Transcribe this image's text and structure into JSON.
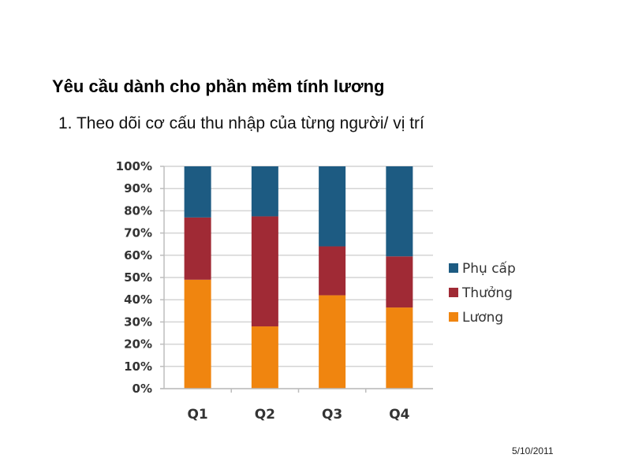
{
  "slide": {
    "title": "Yêu cầu dành cho phần mềm tính lương",
    "subtitle": "1. Theo dõi cơ cấu thu nhập của từng người/ vị trí",
    "date": "5/10/2011"
  },
  "chart_data": {
    "type": "bar",
    "stacked": true,
    "percent_stacked": true,
    "title": "",
    "xlabel": "",
    "ylabel": "",
    "ylim": [
      0,
      100
    ],
    "grid": true,
    "legend_position": "right",
    "yticks": [
      "0%",
      "10%",
      "20%",
      "30%",
      "40%",
      "50%",
      "60%",
      "70%",
      "80%",
      "90%",
      "100%"
    ],
    "categories": [
      "Q1",
      "Q2",
      "Q3",
      "Q4"
    ],
    "series": [
      {
        "name": "Lương",
        "color": "#f0850f",
        "values": [
          49,
          28,
          42,
          36.5
        ]
      },
      {
        "name": "Thưởng",
        "color": "#a02a35",
        "values": [
          28,
          49.5,
          22,
          23
        ]
      },
      {
        "name": "Phụ cấp",
        "color": "#1d5b82",
        "values": [
          23,
          22.5,
          36,
          40.5
        ]
      }
    ],
    "legend_order": [
      "Phụ cấp",
      "Thưởng",
      "Lương"
    ]
  }
}
